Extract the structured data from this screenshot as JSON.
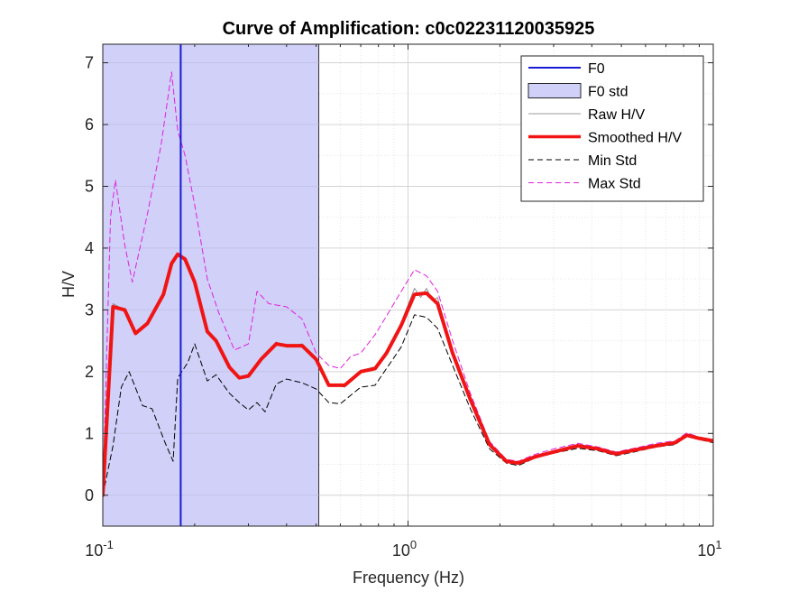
{
  "chart_data": {
    "type": "line",
    "title": "Curve of Amplification: c0c02231120035925",
    "xlabel": "Frequency (Hz)",
    "ylabel": "H/V",
    "xscale": "log",
    "xlim": [
      0.1,
      10
    ],
    "ylim": [
      -0.5,
      7.3
    ],
    "x_ticks": [
      {
        "base": "10",
        "exp": "-1"
      },
      {
        "base": "10",
        "exp": "0"
      },
      {
        "base": "10",
        "exp": "1"
      }
    ],
    "y_ticks": [
      "0",
      "1",
      "2",
      "3",
      "4",
      "5",
      "6",
      "7"
    ],
    "y_tick_values": [
      0,
      1,
      2,
      3,
      4,
      5,
      6,
      7
    ],
    "grid": true,
    "legend_position": "top-right",
    "f0": 0.18,
    "f0_std_range": [
      0.1,
      0.51
    ],
    "colors": {
      "f0": "#1a1ad6",
      "f0_std_fill": "#d0d0f8",
      "raw": "#7a7a7a",
      "smoothed": "#f01414",
      "min_std": "#000000",
      "max_std": "#e020e0"
    },
    "legend": [
      {
        "key": "f0",
        "label": "F0"
      },
      {
        "key": "f0_std",
        "label": "F0 std"
      },
      {
        "key": "raw",
        "label": "Raw H/V"
      },
      {
        "key": "smoothed",
        "label": "Smoothed H/V"
      },
      {
        "key": "min_std",
        "label": "Min Std"
      },
      {
        "key": "max_std",
        "label": "Max Std"
      }
    ],
    "series": [
      {
        "name": "Smoothed H/V",
        "key": "smoothed",
        "x": [
          0.1,
          0.108,
          0.118,
          0.128,
          0.14,
          0.158,
          0.168,
          0.176,
          0.186,
          0.2,
          0.22,
          0.235,
          0.26,
          0.28,
          0.3,
          0.33,
          0.37,
          0.4,
          0.45,
          0.5,
          0.55,
          0.62,
          0.7,
          0.78,
          0.85,
          0.95,
          1.05,
          1.15,
          1.25,
          1.4,
          1.6,
          1.85,
          2.1,
          2.3,
          2.6,
          3.0,
          3.6,
          4.2,
          4.8,
          5.5,
          6.5,
          7.5,
          8.2,
          9.0,
          10.0
        ],
        "y": [
          0.0,
          3.05,
          3.0,
          2.62,
          2.78,
          3.25,
          3.75,
          3.9,
          3.82,
          3.45,
          2.65,
          2.5,
          2.07,
          1.9,
          1.93,
          2.2,
          2.45,
          2.42,
          2.42,
          2.2,
          1.78,
          1.78,
          2.0,
          2.05,
          2.3,
          2.75,
          3.25,
          3.27,
          3.1,
          2.3,
          1.55,
          0.82,
          0.55,
          0.52,
          0.62,
          0.7,
          0.8,
          0.75,
          0.67,
          0.73,
          0.8,
          0.85,
          0.97,
          0.92,
          0.88
        ]
      },
      {
        "name": "Raw H/V",
        "key": "raw",
        "x": [
          0.1,
          0.108,
          0.118,
          0.128,
          0.14,
          0.158,
          0.168,
          0.176,
          0.186,
          0.2,
          0.22,
          0.235,
          0.26,
          0.28,
          0.3,
          0.33,
          0.37,
          0.4,
          0.45,
          0.5,
          0.55,
          0.62,
          0.7,
          0.78,
          0.85,
          0.95,
          1.05,
          1.1,
          1.15,
          1.2,
          1.25,
          1.4,
          1.6,
          1.85,
          2.1,
          2.3,
          2.6,
          3.0,
          3.6,
          4.2,
          4.8,
          5.5,
          6.5,
          7.5,
          8.2,
          9.0,
          10.0
        ],
        "y": [
          0.0,
          3.1,
          3.0,
          2.65,
          2.8,
          3.25,
          3.78,
          3.88,
          3.85,
          3.45,
          2.62,
          2.52,
          2.05,
          1.88,
          1.95,
          2.2,
          2.48,
          2.4,
          2.45,
          2.18,
          1.8,
          1.75,
          2.02,
          2.08,
          2.32,
          2.8,
          3.35,
          3.2,
          3.35,
          3.15,
          3.2,
          2.3,
          1.5,
          0.8,
          0.55,
          0.5,
          0.63,
          0.72,
          0.8,
          0.74,
          0.67,
          0.74,
          0.82,
          0.86,
          0.98,
          0.9,
          0.88
        ]
      },
      {
        "name": "Min Std",
        "key": "min_std",
        "x": [
          0.1,
          0.108,
          0.115,
          0.122,
          0.135,
          0.145,
          0.16,
          0.17,
          0.176,
          0.19,
          0.2,
          0.22,
          0.235,
          0.26,
          0.28,
          0.3,
          0.32,
          0.34,
          0.37,
          0.4,
          0.45,
          0.5,
          0.55,
          0.6,
          0.65,
          0.7,
          0.78,
          0.85,
          0.95,
          1.05,
          1.15,
          1.25,
          1.4,
          1.6,
          1.85,
          2.1,
          2.3,
          2.6,
          3.0,
          3.6,
          4.2,
          4.8,
          5.5,
          6.5,
          7.5,
          8.2,
          9.0,
          10.0
        ],
        "y": [
          0.0,
          0.8,
          1.75,
          2.0,
          1.45,
          1.4,
          0.85,
          0.55,
          1.9,
          2.15,
          2.45,
          1.85,
          1.95,
          1.65,
          1.5,
          1.38,
          1.5,
          1.35,
          1.8,
          1.88,
          1.82,
          1.72,
          1.5,
          1.48,
          1.62,
          1.75,
          1.78,
          2.05,
          2.4,
          2.92,
          2.88,
          2.7,
          2.1,
          1.4,
          0.75,
          0.52,
          0.48,
          0.6,
          0.68,
          0.76,
          0.72,
          0.64,
          0.7,
          0.78,
          0.82,
          0.96,
          0.9,
          0.85
        ]
      },
      {
        "name": "Max Std",
        "key": "max_std",
        "x": [
          0.1,
          0.106,
          0.11,
          0.118,
          0.125,
          0.14,
          0.155,
          0.168,
          0.176,
          0.186,
          0.2,
          0.22,
          0.24,
          0.27,
          0.3,
          0.32,
          0.35,
          0.4,
          0.45,
          0.5,
          0.55,
          0.6,
          0.65,
          0.7,
          0.78,
          0.85,
          0.95,
          1.05,
          1.15,
          1.25,
          1.4,
          1.6,
          1.85,
          2.1,
          2.3,
          2.6,
          3.0,
          3.6,
          4.2,
          4.8,
          5.5,
          6.5,
          7.5,
          8.2,
          9.0,
          10.0
        ],
        "y": [
          0.0,
          4.5,
          5.1,
          4.05,
          3.45,
          4.55,
          5.65,
          6.85,
          5.9,
          5.5,
          4.7,
          3.5,
          2.95,
          2.35,
          2.45,
          3.3,
          3.1,
          3.05,
          2.85,
          2.3,
          2.1,
          2.05,
          2.25,
          2.3,
          2.6,
          2.9,
          3.3,
          3.65,
          3.55,
          3.3,
          2.5,
          1.65,
          0.87,
          0.58,
          0.55,
          0.66,
          0.75,
          0.84,
          0.78,
          0.7,
          0.76,
          0.84,
          0.88,
          1.01,
          0.94,
          0.9
        ]
      }
    ]
  }
}
